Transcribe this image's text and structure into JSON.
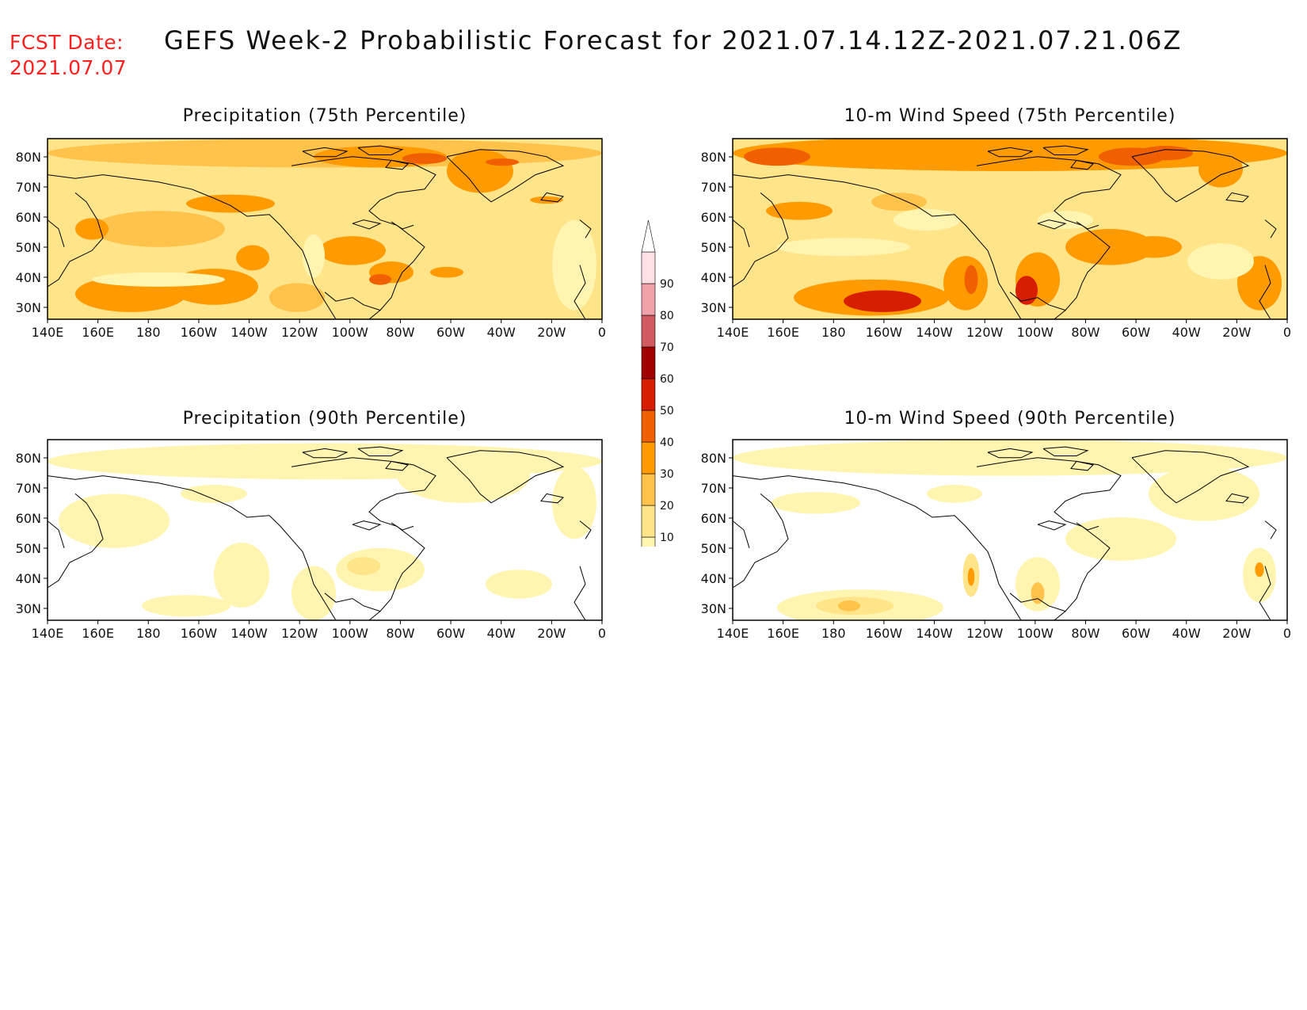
{
  "header": {
    "fcst_label": "FCST Date:",
    "fcst_date": "2021.07.07",
    "title": "GEFS Week-2 Probabilistic Forecast for 2021.07.14.12Z-2021.07.21.06Z"
  },
  "axes": {
    "lat_ticks": [
      "80N",
      "70N",
      "60N",
      "50N",
      "40N",
      "30N"
    ],
    "lon_ticks": [
      "140E",
      "160E",
      "180",
      "160W",
      "140W",
      "120W",
      "100W",
      "80W",
      "60W",
      "40W",
      "20W",
      "0"
    ]
  },
  "panels": [
    {
      "id": "p75",
      "title": "Precipitation (75th Percentile)"
    },
    {
      "id": "w75",
      "title": "10-m Wind Speed (75th Percentile)"
    },
    {
      "id": "p90",
      "title": "Precipitation (90th Percentile)"
    },
    {
      "id": "w90",
      "title": "10-m Wind Speed (90th Percentile)"
    }
  ],
  "colorbar": {
    "levels": [
      "10",
      "20",
      "30",
      "40",
      "50",
      "60",
      "70",
      "80",
      "90"
    ],
    "colors": [
      "#fff5b0",
      "#ffe48a",
      "#ffc24a",
      "#ff9a00",
      "#f06000",
      "#d81e00",
      "#a00000",
      "#d05a60",
      "#f0a0a8",
      "#ffe0e4"
    ]
  }
}
